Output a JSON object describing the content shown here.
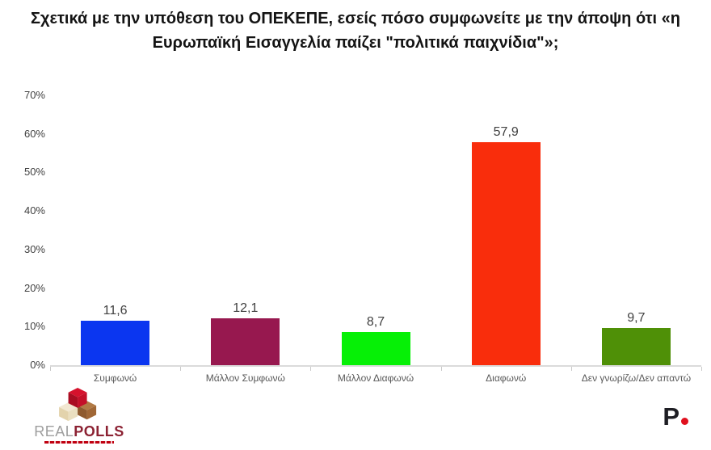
{
  "chart_data": {
    "type": "bar",
    "title": "Σχετικά με την υπόθεση του ΟΠΕΚΕΠΕ, εσείς πόσο συμφωνείτε με την άποψη ότι «η Ευρωπαϊκή Εισαγγελία παίζει \"πολιτικά παιχνίδια\"»;",
    "categories": [
      "Συμφωνώ",
      "Μάλλον Συμφωνώ",
      "Μάλλον Διαφωνώ",
      "Διαφωνώ",
      "Δεν γνωρίζω/Δεν απαντώ"
    ],
    "values": [
      11.6,
      12.1,
      8.7,
      57.9,
      9.7
    ],
    "value_labels": [
      "11,6",
      "12,1",
      "8,7",
      "57,9",
      "9,7"
    ],
    "bar_colors": [
      "#0B36F0",
      "#97184F",
      "#06F006",
      "#F92D0C",
      "#4F9007"
    ],
    "ylim": [
      0,
      70
    ],
    "yticks": [
      "70%",
      "60%",
      "50%",
      "40%",
      "30%",
      "20%",
      "10%",
      "0%"
    ],
    "grid": false,
    "legend": "none",
    "axis_color": "#DBDBDB",
    "value_label_color": "#404040",
    "category_label_color": "#595959"
  },
  "footer": {
    "brand_left": {
      "text_real": "REAL",
      "text_polls": "POLLS",
      "real_color": "#9E9E9E",
      "polls_color": "#8C2233",
      "cube_colors": [
        "#CE1126",
        "#A9713F",
        "#EFE3C8"
      ]
    },
    "brand_right": {
      "letter": "P",
      "letter_color": "#1E1E24",
      "dot_color": "#E0101E"
    }
  }
}
